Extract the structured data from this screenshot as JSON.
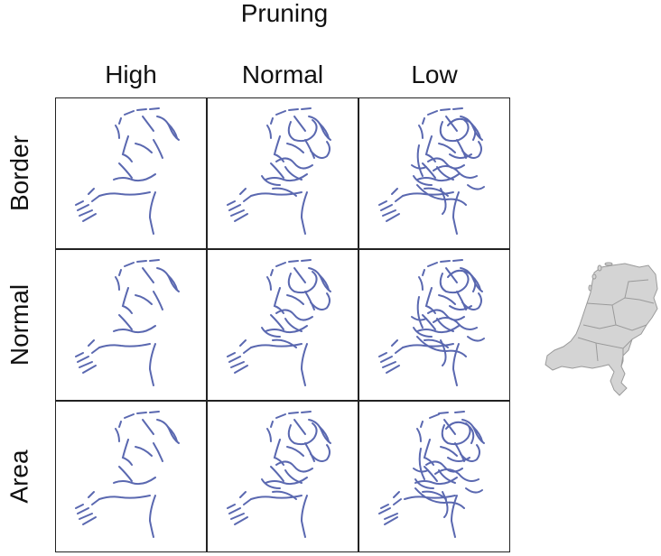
{
  "title": "Pruning",
  "columns": [
    {
      "label": "High"
    },
    {
      "label": "Normal"
    },
    {
      "label": "Low"
    }
  ],
  "rows": [
    {
      "label": "Border"
    },
    {
      "label": "Normal"
    },
    {
      "label": "Area"
    }
  ],
  "colors": {
    "stroke": "#5a68b0",
    "grid_border": "#222222",
    "map_fill": "#d4d4d4",
    "map_stroke": "#9a9a9a"
  },
  "reference_map": {
    "icon": "netherlands-map-icon"
  }
}
